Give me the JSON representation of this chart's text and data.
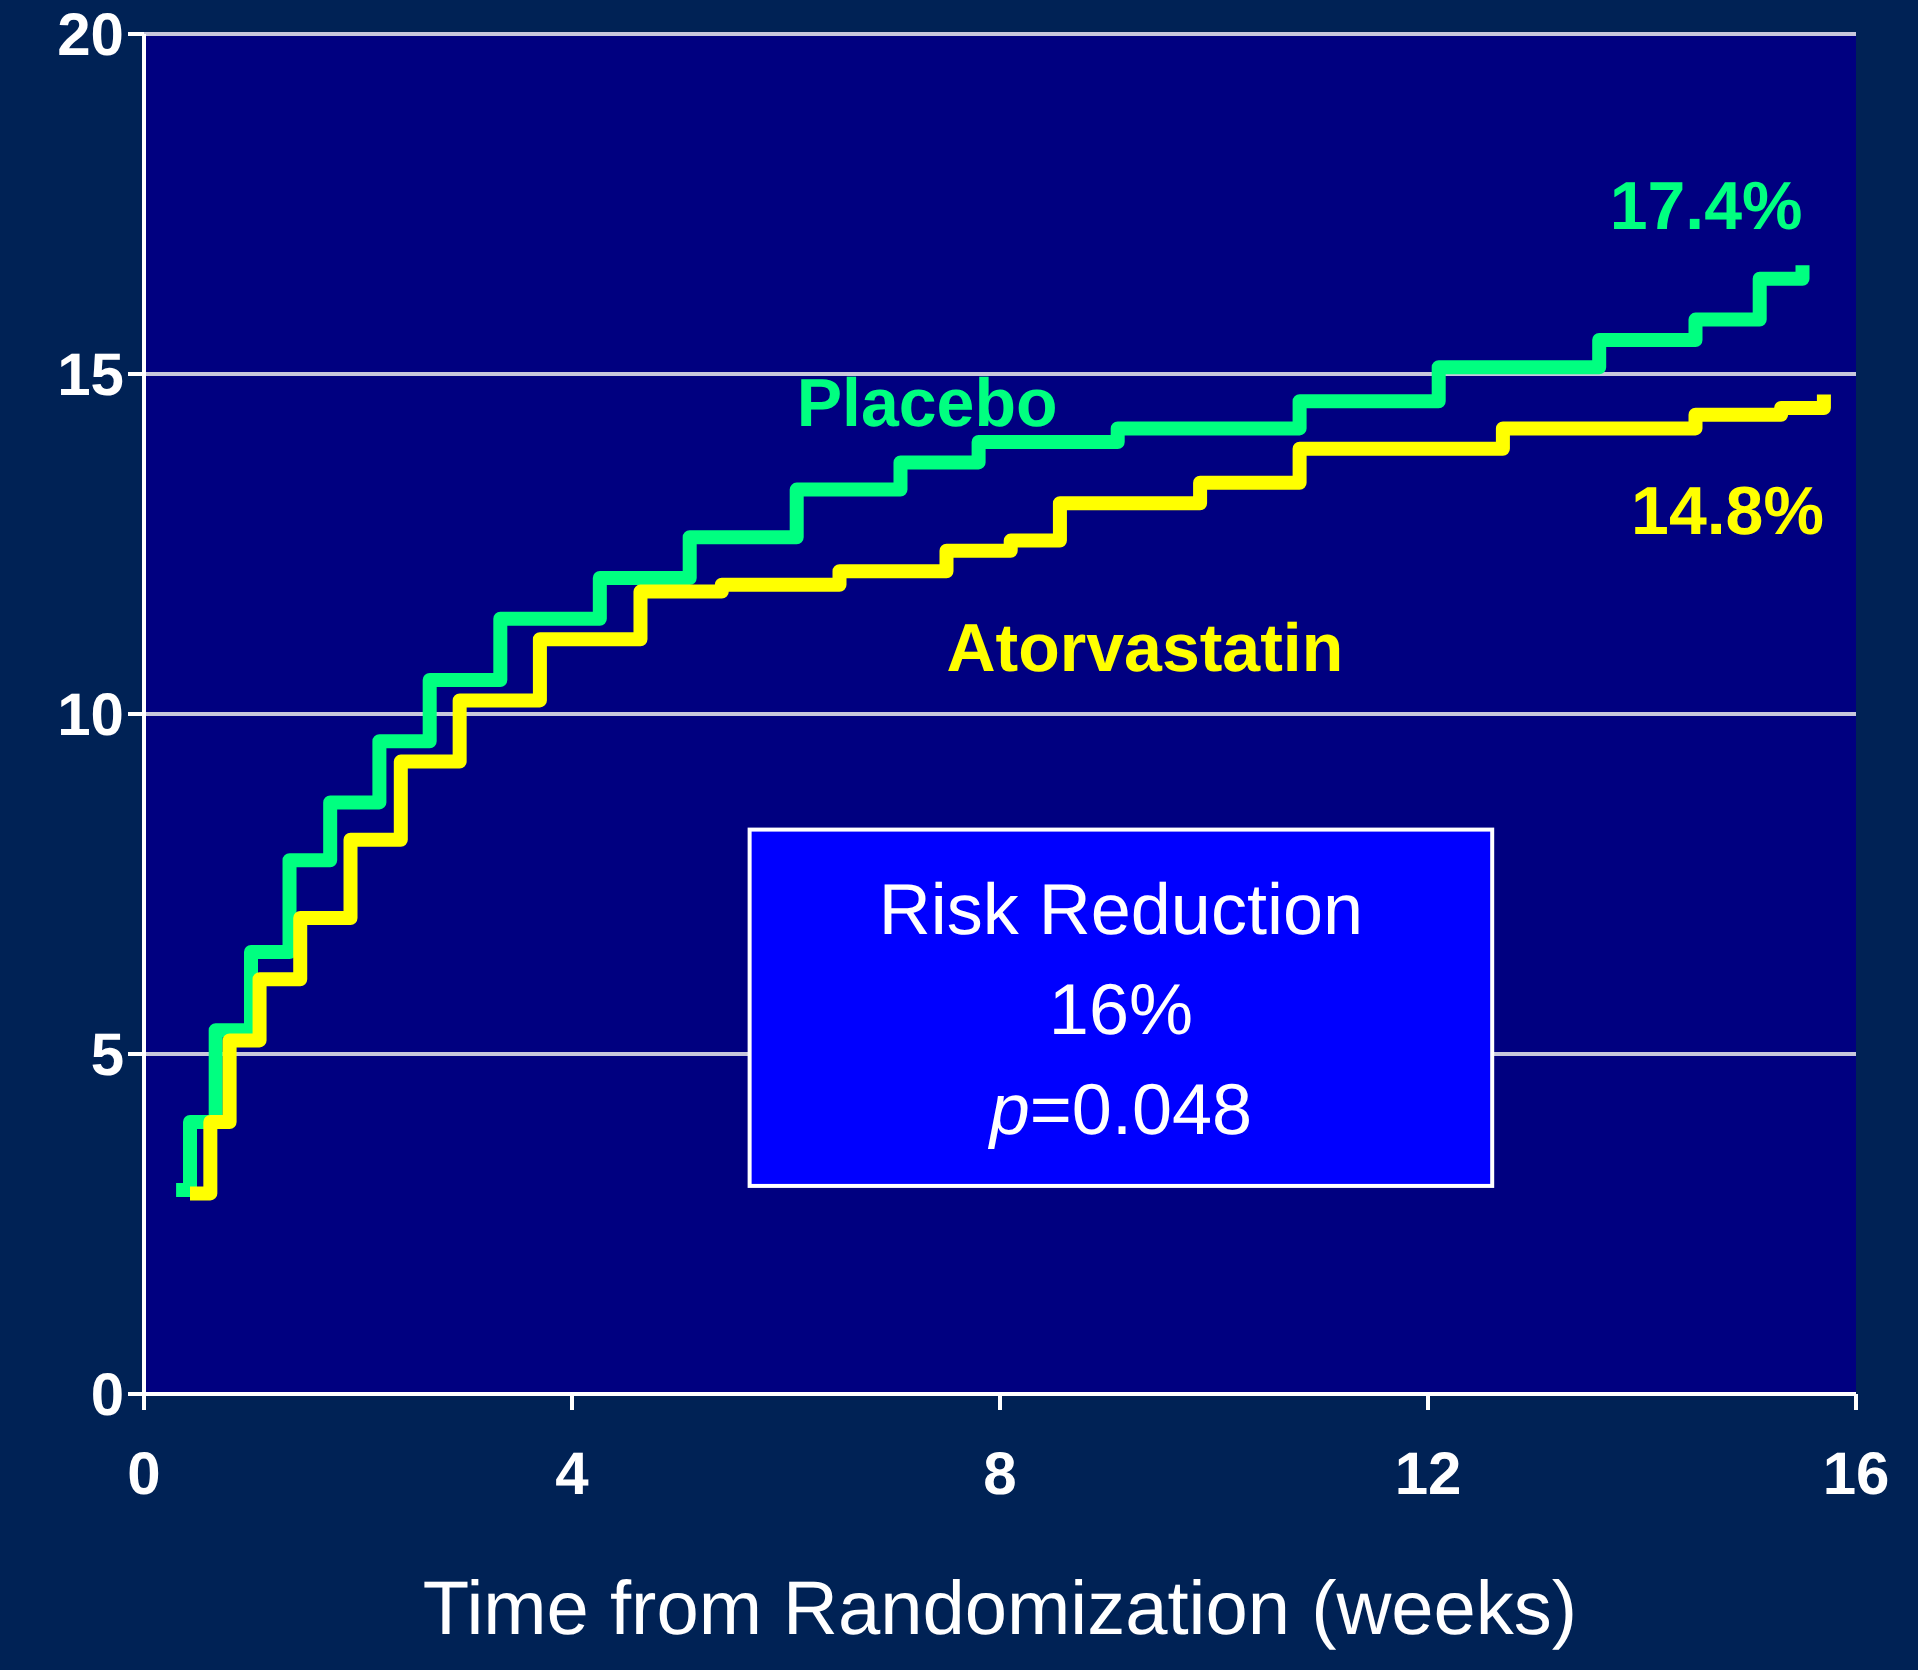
{
  "chart_data": {
    "type": "step",
    "xlabel": "Time from Randomization (weeks)",
    "xlim": [
      0,
      16
    ],
    "xticks": [
      0,
      4,
      8,
      12,
      16
    ],
    "ylim": [
      0,
      20
    ],
    "yticks": [
      0,
      5,
      10,
      15,
      20
    ],
    "grid": "y",
    "series": [
      {
        "name": "Placebo",
        "color": "#00ff80",
        "x": [
          0.3,
          0.43,
          0.67,
          1.0,
          1.36,
          1.74,
          2.2,
          2.67,
          3.33,
          4.26,
          5.1,
          6.1,
          7.07,
          7.8,
          9.1,
          10.8,
          12.1,
          13.6,
          14.5,
          15.1,
          15.5
        ],
        "values": [
          3.0,
          4.0,
          5.35,
          6.5,
          7.85,
          8.7,
          9.6,
          10.5,
          11.4,
          12.0,
          12.6,
          13.3,
          13.7,
          14.0,
          14.2,
          14.6,
          15.1,
          15.5,
          15.8,
          16.4,
          16.6
        ]
      },
      {
        "name": "Atorvastatin",
        "color": "#ffff00",
        "x": [
          0.43,
          0.62,
          0.8,
          1.08,
          1.46,
          1.93,
          2.4,
          2.95,
          3.7,
          4.64,
          5.4,
          6.5,
          7.5,
          8.1,
          8.56,
          9.87,
          10.8,
          12.7,
          14.5,
          15.3,
          15.7
        ],
        "values": [
          2.95,
          4.0,
          5.2,
          6.1,
          7.0,
          8.15,
          9.3,
          10.2,
          11.1,
          11.8,
          11.9,
          12.1,
          12.4,
          12.55,
          13.1,
          13.4,
          13.9,
          14.2,
          14.4,
          14.5,
          14.7
        ]
      }
    ],
    "annotations": [
      {
        "text": "17.4%",
        "x": 15.5,
        "y": 16.6
      },
      {
        "text": "14.8%",
        "x": 15.7,
        "y": 14.7
      },
      "Risk Reduction",
      "16%",
      "p=0.048"
    ]
  }
}
